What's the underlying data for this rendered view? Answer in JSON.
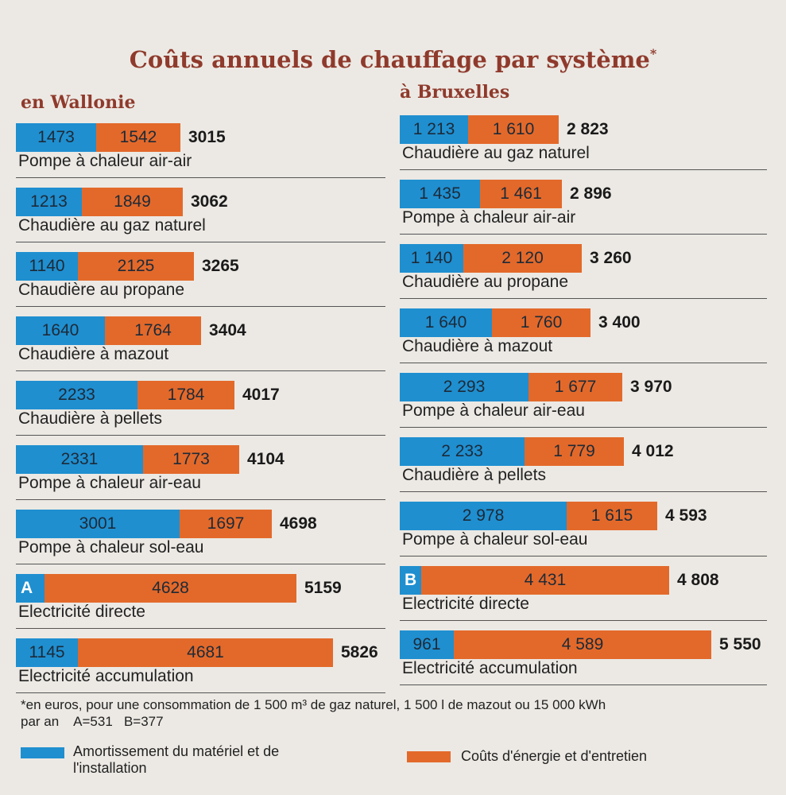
{
  "title": "Coûts annuels de chauffage par système",
  "title_mark": "*",
  "colors": {
    "blue": "#1f8fd0",
    "orange": "#e3692a",
    "title": "#8f3a2c"
  },
  "chart_data": [
    {
      "type": "bar",
      "orientation": "horizontal",
      "stacked": true,
      "title": "en Wallonie",
      "categories": [
        "Pompe à chaleur air-air",
        "Chaudière au gaz naturel",
        "Chaudière au propane",
        "Chaudière à mazout",
        "Chaudière à pellets",
        "Pompe à chaleur air-eau",
        "Pompe à chaleur sol-eau",
        "Electricité directe",
        "Electricité accumulation"
      ],
      "blue_labels": [
        "1473",
        "1213",
        "1140",
        "1640",
        "2233",
        "2331",
        "3001",
        "A",
        "1145"
      ],
      "orange_labels": [
        "1542",
        "1849",
        "2125",
        "1764",
        "1784",
        "1773",
        "1697",
        "4628",
        "4681"
      ],
      "total_labels": [
        "3015",
        "3062",
        "3265",
        "3404",
        "4017",
        "4104",
        "4698",
        "5159",
        "5826"
      ],
      "series": [
        {
          "name": "Amortissement du matériel et de l'installation",
          "values": [
            1473,
            1213,
            1140,
            1640,
            2233,
            2331,
            3001,
            531,
            1145
          ]
        },
        {
          "name": "Coûts d'énergie et d'entretien",
          "values": [
            1542,
            1849,
            2125,
            1764,
            1784,
            1773,
            1697,
            4628,
            4681
          ]
        }
      ]
    },
    {
      "type": "bar",
      "orientation": "horizontal",
      "stacked": true,
      "title": "à Bruxelles",
      "categories": [
        "Chaudière au gaz naturel",
        "Pompe à chaleur air-air",
        "Chaudière au propane",
        "Chaudière à mazout",
        "Pompe à chaleur air-eau",
        "Chaudière à pellets",
        "Pompe à chaleur sol-eau",
        "Electricité directe",
        "Electricité accumulation"
      ],
      "blue_labels": [
        "1 213",
        "1 435",
        "1 140",
        "1 640",
        "2 293",
        "2 233",
        "2 978",
        "B",
        "961"
      ],
      "orange_labels": [
        "1 610",
        "1 461",
        "2 120",
        "1 760",
        "1 677",
        "1 779",
        "1 615",
        "4 431",
        "4 589"
      ],
      "total_labels": [
        "2 823",
        "2 896",
        "3 260",
        "3 400",
        "3 970",
        "4 012",
        "4 593",
        "4 808",
        "5 550"
      ],
      "series": [
        {
          "name": "Amortissement du matériel et de l'installation",
          "values": [
            1213,
            1435,
            1140,
            1640,
            2293,
            2233,
            2978,
            377,
            961
          ]
        },
        {
          "name": "Coûts d'énergie et d'entretien",
          "values": [
            1610,
            1461,
            2120,
            1760,
            1677,
            1779,
            1615,
            4431,
            4589
          ]
        }
      ]
    }
  ],
  "footnote_line1": "*en euros, pour une consommation de 1 500 m³ de gaz naturel, 1 500 l de mazout ou 15 000 kWh",
  "footnote_line2": "par an    A=531   B=377",
  "legend": {
    "blue_label": "Amortissement du matériel et de l'installation",
    "orange_label": "Coûts d'énergie et d'entretien"
  }
}
